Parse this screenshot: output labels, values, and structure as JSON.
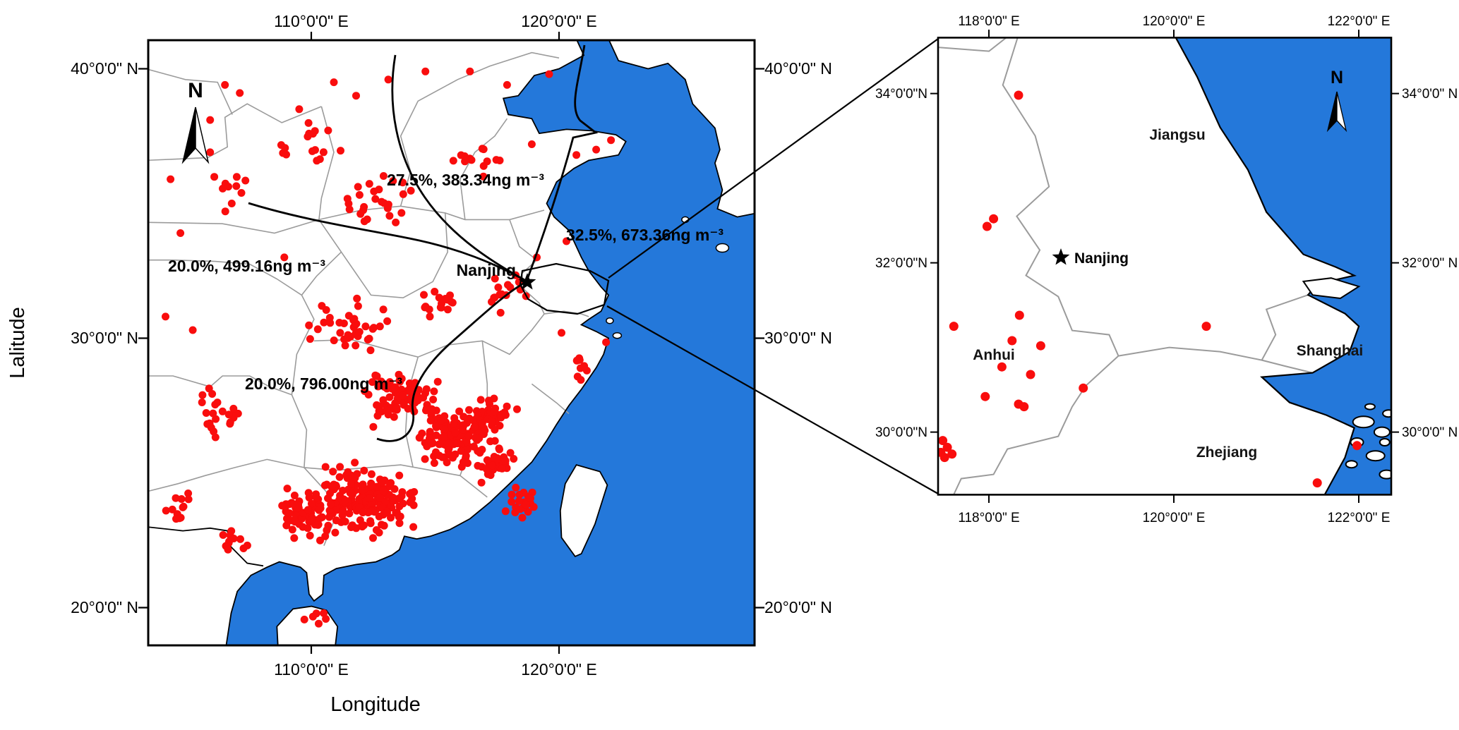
{
  "colors": {
    "sea": "#2478da",
    "land": "#ffffff",
    "fire_spot": "#f90d0d",
    "trajectory": "#000000",
    "province_border": "#9b9b9b",
    "frame": "#000000"
  },
  "main_map": {
    "x_axis_label": "Longitude",
    "y_axis_label": "Lalitude",
    "north_label": "N",
    "city_label": "Nanjing",
    "ticks_top": [
      "110°0'0\" E",
      "120°0'0\" E"
    ],
    "ticks_bottom": [
      "110°0'0\" E",
      "120°0'0\" E"
    ],
    "ticks_left": [
      "40°0'0\" N",
      "30°0'0\" N",
      "20°0'0\" N"
    ],
    "ticks_right": [
      "40°0'0\" N",
      "30°0'0\" N",
      "20°0'0\" N"
    ],
    "trajectory_labels": [
      "27.5%, 383.34ng m⁻³",
      "32.5%, 673.36ng m⁻³",
      "20.0%, 499.16ng m⁻³",
      "20.0%, 796.00ng m⁻³"
    ],
    "fire_spots": {
      "clusters": [
        {
          "lon": 112.3,
          "lat": 24.0,
          "spread_lon": 2.6,
          "spread_lat": 1.5,
          "count": 200
        },
        {
          "lon": 115.6,
          "lat": 26.2,
          "spread_lon": 1.9,
          "spread_lat": 1.5,
          "count": 110
        },
        {
          "lon": 109.9,
          "lat": 23.4,
          "spread_lon": 1.7,
          "spread_lat": 1.3,
          "count": 70
        },
        {
          "lon": 113.6,
          "lat": 27.8,
          "spread_lon": 2.1,
          "spread_lat": 1.2,
          "count": 80
        },
        {
          "lon": 117.2,
          "lat": 27.0,
          "spread_lon": 1.3,
          "spread_lat": 1.1,
          "count": 45
        },
        {
          "lon": 117.6,
          "lat": 25.4,
          "spread_lon": 0.9,
          "spread_lat": 0.9,
          "count": 28
        },
        {
          "lon": 118.5,
          "lat": 23.8,
          "spread_lon": 0.8,
          "spread_lat": 0.8,
          "count": 22
        },
        {
          "lon": 111.8,
          "lat": 30.5,
          "spread_lon": 2.4,
          "spread_lat": 1.2,
          "count": 38
        },
        {
          "lon": 115.1,
          "lat": 31.2,
          "spread_lon": 1.5,
          "spread_lat": 0.9,
          "count": 16
        },
        {
          "lon": 117.7,
          "lat": 31.7,
          "spread_lon": 1.2,
          "spread_lat": 0.9,
          "count": 15
        },
        {
          "lon": 112.6,
          "lat": 34.9,
          "spread_lon": 3.2,
          "spread_lat": 1.5,
          "count": 26
        },
        {
          "lon": 110.1,
          "lat": 37.2,
          "spread_lon": 2.2,
          "spread_lat": 1.5,
          "count": 16
        },
        {
          "lon": 116.7,
          "lat": 36.7,
          "spread_lon": 1.7,
          "spread_lat": 1.2,
          "count": 14
        },
        {
          "lon": 106.7,
          "lat": 35.7,
          "spread_lon": 1.1,
          "spread_lat": 1.3,
          "count": 10
        },
        {
          "lon": 106.9,
          "lat": 22.4,
          "spread_lon": 0.9,
          "spread_lat": 0.6,
          "count": 12
        },
        {
          "lon": 104.8,
          "lat": 23.6,
          "spread_lon": 0.9,
          "spread_lat": 0.9,
          "count": 12
        },
        {
          "lon": 106.3,
          "lat": 27.2,
          "spread_lon": 1.5,
          "spread_lat": 1.4,
          "count": 22
        },
        {
          "lon": 110.2,
          "lat": 19.6,
          "spread_lon": 0.7,
          "spread_lat": 0.4,
          "count": 6
        },
        {
          "lon": 120.9,
          "lat": 28.9,
          "spread_lon": 0.5,
          "spread_lat": 0.8,
          "count": 8
        }
      ],
      "points": [
        [
          107.1,
          39.1
        ],
        [
          106.5,
          39.4
        ],
        [
          105.9,
          38.1
        ],
        [
          105.9,
          36.9
        ],
        [
          109.5,
          38.5
        ],
        [
          110.9,
          39.5
        ],
        [
          111.8,
          39.0
        ],
        [
          113.1,
          39.6
        ],
        [
          114.6,
          39.9
        ],
        [
          116.4,
          39.9
        ],
        [
          117.9,
          39.4
        ],
        [
          119.6,
          39.8
        ],
        [
          121.5,
          37.0
        ],
        [
          122.1,
          37.35
        ],
        [
          120.7,
          36.8
        ],
        [
          118.9,
          37.2
        ],
        [
          104.3,
          35.9
        ],
        [
          104.7,
          33.9
        ],
        [
          108.9,
          33.0
        ],
        [
          121.9,
          29.85
        ],
        [
          120.1,
          30.2
        ],
        [
          119.1,
          33.0
        ],
        [
          120.3,
          33.6
        ],
        [
          104.1,
          30.8
        ],
        [
          105.2,
          30.3
        ]
      ]
    }
  },
  "inset_map": {
    "north_label": "N",
    "city_label": "Nanjing",
    "ticks_top": [
      "118°0'0\" E",
      "120°0'0\" E",
      "122°0'0\" E"
    ],
    "ticks_bottom": [
      "118°0'0\" E",
      "120°0'0\" E",
      "122°0'0\" E"
    ],
    "ticks_left": [
      "34°0'0\"N",
      "32°0'0\"N",
      "30°0'0\"N"
    ],
    "ticks_right": [
      "34°0'0\" N",
      "32°0'0\" N",
      "30°0'0\" N"
    ],
    "province_labels": [
      "Jiangsu",
      "Anhui",
      "Shanghai",
      "Zhejiang"
    ],
    "fire_spots": {
      "points": [
        [
          118.32,
          33.98
        ],
        [
          118.05,
          32.52
        ],
        [
          117.98,
          32.43
        ],
        [
          117.62,
          31.25
        ],
        [
          118.33,
          31.38
        ],
        [
          118.25,
          31.08
        ],
        [
          118.56,
          31.02
        ],
        [
          118.14,
          30.77
        ],
        [
          118.45,
          30.68
        ],
        [
          117.96,
          30.42
        ],
        [
          118.32,
          30.33
        ],
        [
          118.38,
          30.3
        ],
        [
          119.02,
          30.52
        ],
        [
          120.35,
          31.25
        ],
        [
          117.5,
          29.9
        ],
        [
          117.55,
          29.82
        ],
        [
          117.48,
          29.76
        ],
        [
          117.6,
          29.74
        ],
        [
          117.52,
          29.7
        ],
        [
          121.98,
          29.84
        ],
        [
          121.55,
          29.4
        ]
      ]
    }
  }
}
